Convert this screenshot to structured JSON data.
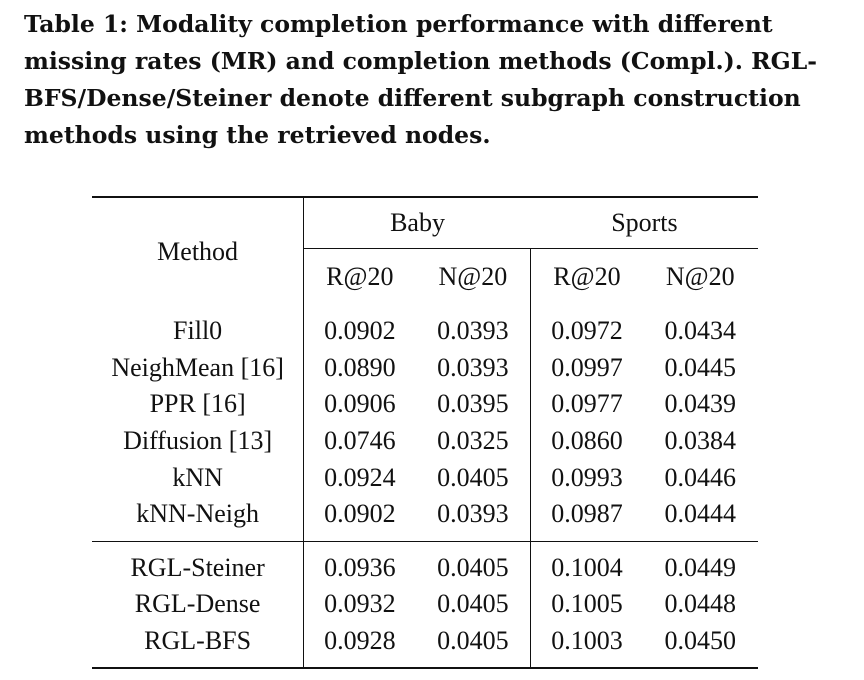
{
  "caption": {
    "lines": [
      "Table 1: Modality completion performance with different",
      "missing rates (MR) and completion methods (Compl.). RGL-",
      "BFS/Dense/Steiner denote different subgraph construction",
      "methods using the retrieved nodes."
    ]
  },
  "table": {
    "method_header": "Method",
    "groups": [
      "Baby",
      "Sports"
    ],
    "metrics": [
      "R@20",
      "N@20",
      "R@20",
      "N@20"
    ],
    "rows": [
      {
        "method": "Fill0",
        "values": [
          "0.0902",
          "0.0393",
          "0.0972",
          "0.0434"
        ]
      },
      {
        "method": "NeighMean [16]",
        "values": [
          "0.0890",
          "0.0393",
          "0.0997",
          "0.0445"
        ]
      },
      {
        "method": "PPR [16]",
        "values": [
          "0.0906",
          "0.0395",
          "0.0977",
          "0.0439"
        ]
      },
      {
        "method": "Diffusion [13]",
        "values": [
          "0.0746",
          "0.0325",
          "0.0860",
          "0.0384"
        ]
      },
      {
        "method": "kNN",
        "values": [
          "0.0924",
          "0.0405",
          "0.0993",
          "0.0446"
        ]
      },
      {
        "method": "kNN-Neigh",
        "values": [
          "0.0902",
          "0.0393",
          "0.0987",
          "0.0444"
        ]
      },
      {
        "method": "RGL-Steiner",
        "values": [
          "0.0936",
          "0.0405",
          "0.1004",
          "0.0449"
        ]
      },
      {
        "method": "RGL-Dense",
        "values": [
          "0.0932",
          "0.0405",
          "0.1005",
          "0.0448"
        ]
      },
      {
        "method": "RGL-BFS",
        "values": [
          "0.0928",
          "0.0405",
          "0.1003",
          "0.0450"
        ]
      }
    ],
    "bold_cells": [
      [
        4,
        1
      ],
      [
        6,
        0
      ],
      [
        6,
        1
      ],
      [
        7,
        1
      ],
      [
        7,
        2
      ],
      [
        8,
        1
      ],
      [
        8,
        3
      ]
    ]
  }
}
